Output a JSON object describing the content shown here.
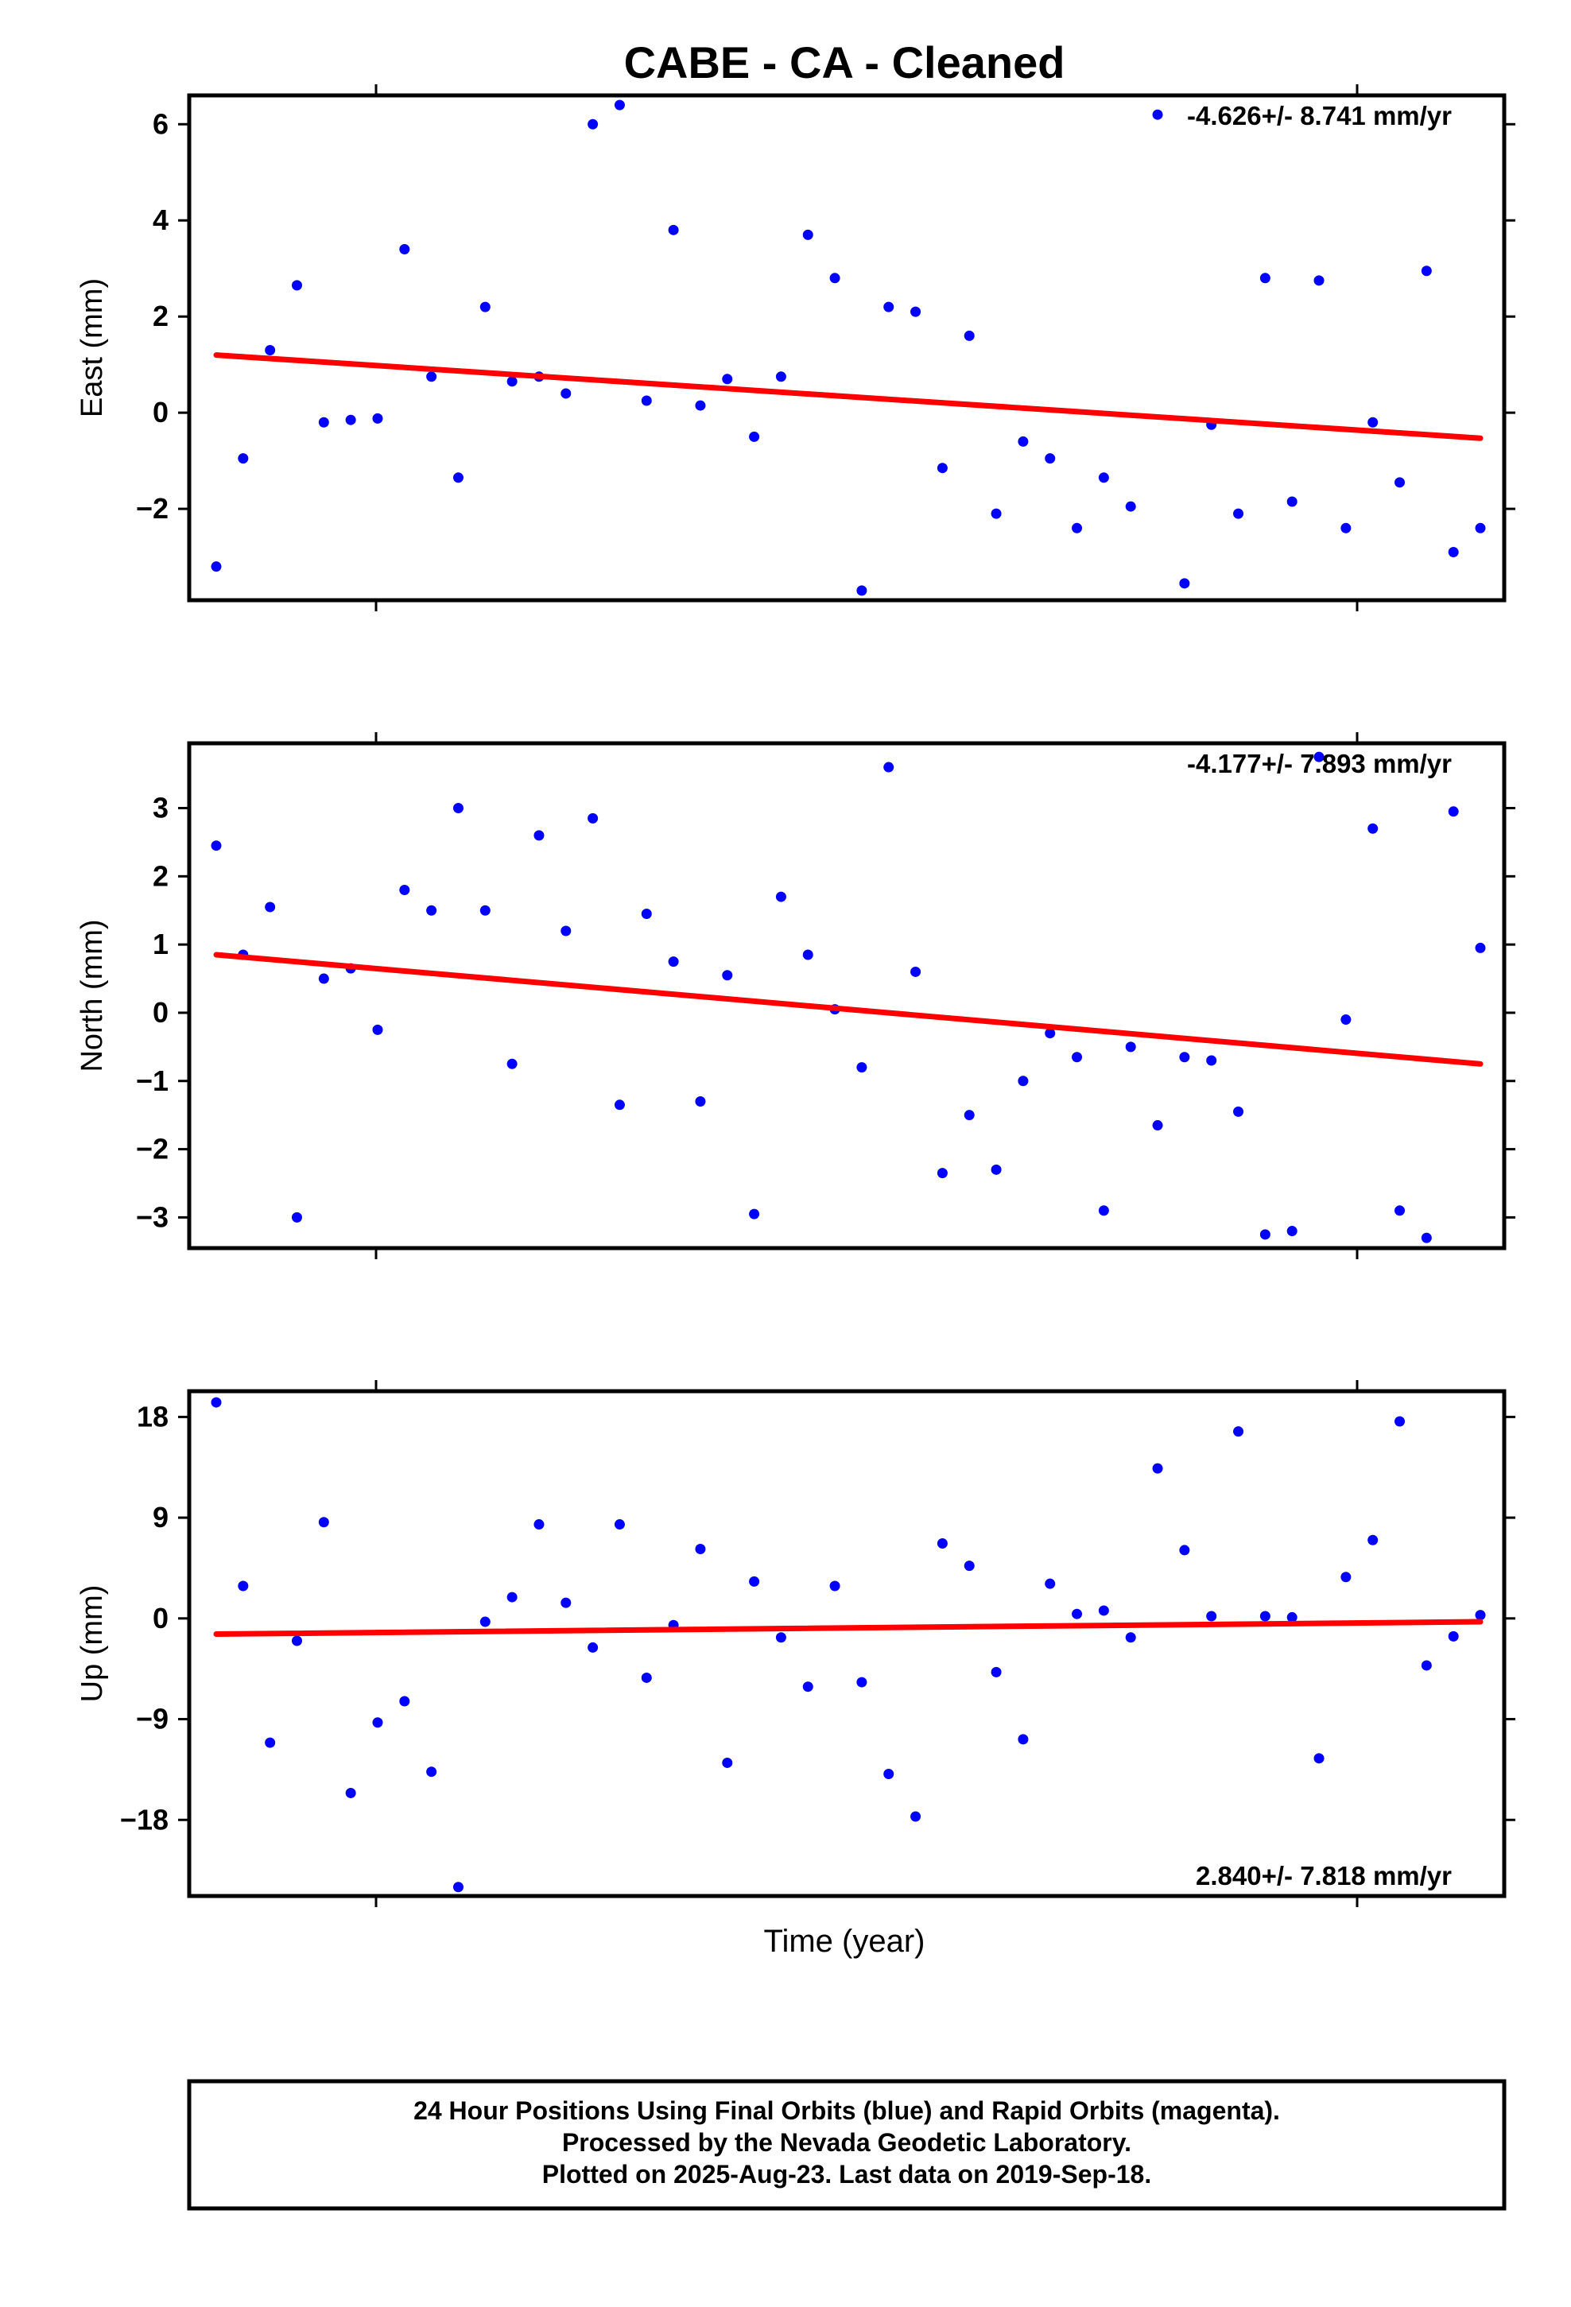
{
  "title": "CABE  - CA - Cleaned",
  "xlabel": "Time (year)",
  "footer": [
    "24 Hour Positions Using Final Orbits (blue) and Rapid Orbits (magenta).",
    "Processed by the Nevada Geodetic Laboratory.",
    "Plotted on 2025-Aug-23. Last data on 2019-Sep-18."
  ],
  "colors": {
    "points": "#0000ff",
    "trend": "#ff0000",
    "frame": "#000000"
  },
  "chart_data": [
    {
      "type": "scatter",
      "ylabel": "East (mm)",
      "ylim": [
        -3.9,
        6.6
      ],
      "yticks": [
        6,
        4,
        2,
        0,
        -2
      ],
      "tick_labels": [
        "6",
        "4",
        "2",
        "0",
        "−2"
      ],
      "rate_label": "-4.626+/- 8.741 mm/yr",
      "rate_position": "top-right",
      "trend": [
        1.2,
        -0.53
      ],
      "values": [
        -3.2,
        -0.95,
        1.3,
        2.65,
        -0.2,
        -0.15,
        -0.12,
        3.4,
        0.75,
        -1.35,
        2.2,
        0.65,
        0.75,
        0.4,
        6.0,
        6.4,
        0.25,
        3.8,
        0.15,
        0.7,
        -0.5,
        0.75,
        3.7,
        2.8,
        -3.7,
        2.2,
        2.1,
        -1.15,
        1.6,
        -2.1,
        -0.6,
        -0.95,
        -2.4,
        -1.35,
        -1.95,
        6.2,
        -3.55,
        -0.25,
        -2.1,
        2.8,
        -1.85,
        2.75,
        -2.4,
        -0.2,
        -1.45,
        2.95,
        -2.9,
        -2.4
      ]
    },
    {
      "type": "scatter",
      "ylabel": "North (mm)",
      "ylim": [
        -3.45,
        3.95
      ],
      "yticks": [
        3,
        2,
        1,
        0,
        -1,
        -2,
        -3
      ],
      "tick_labels": [
        "3",
        "2",
        "1",
        "0",
        "−1",
        "−2",
        "−3"
      ],
      "rate_label": "-4.177+/- 7.893 mm/yr",
      "rate_position": "top-right",
      "trend": [
        0.85,
        -0.75
      ],
      "values": [
        2.45,
        0.85,
        1.55,
        -3.0,
        0.5,
        0.65,
        -0.25,
        1.8,
        1.5,
        3.0,
        1.5,
        -0.75,
        2.6,
        1.2,
        2.85,
        -1.35,
        1.45,
        0.75,
        -1.3,
        0.55,
        -2.95,
        1.7,
        0.85,
        0.05,
        -0.8,
        3.6,
        0.6,
        -2.35,
        -1.5,
        -2.3,
        -1.0,
        -0.3,
        -0.65,
        -2.9,
        -0.5,
        -1.65,
        -0.65,
        -0.7,
        -1.45,
        -3.25,
        -3.2,
        3.75,
        -0.1,
        2.7,
        -2.9,
        -3.3,
        2.95,
        0.95
      ]
    },
    {
      "type": "scatter",
      "ylabel": "Up (mm)",
      "ylim": [
        -24.8,
        20.3
      ],
      "yticks": [
        18,
        9,
        0,
        -9,
        -18
      ],
      "tick_labels": [
        "18",
        "9",
        "0",
        "−9",
        "−18"
      ],
      "rate_label": "2.840+/- 7.818 mm/yr",
      "rate_position": "bottom-right",
      "trend": [
        -1.4,
        -0.3
      ],
      "values": [
        19.3,
        2.9,
        -11.1,
        -2.0,
        8.6,
        -15.6,
        -9.3,
        -7.4,
        -13.7,
        -24.0,
        -0.3,
        1.9,
        8.4,
        1.4,
        -2.6,
        8.4,
        -5.3,
        -0.6,
        6.2,
        -12.9,
        3.3,
        -1.7,
        -6.1,
        2.9,
        -5.7,
        -13.9,
        -17.7,
        6.7,
        4.7,
        -4.8,
        -10.8,
        3.1,
        0.4,
        0.7,
        -1.7,
        13.4,
        6.1,
        0.2,
        16.7,
        0.2,
        0.1,
        -12.5,
        3.7,
        7.0,
        17.6,
        -4.2,
        -1.6,
        0.3
      ]
    }
  ]
}
